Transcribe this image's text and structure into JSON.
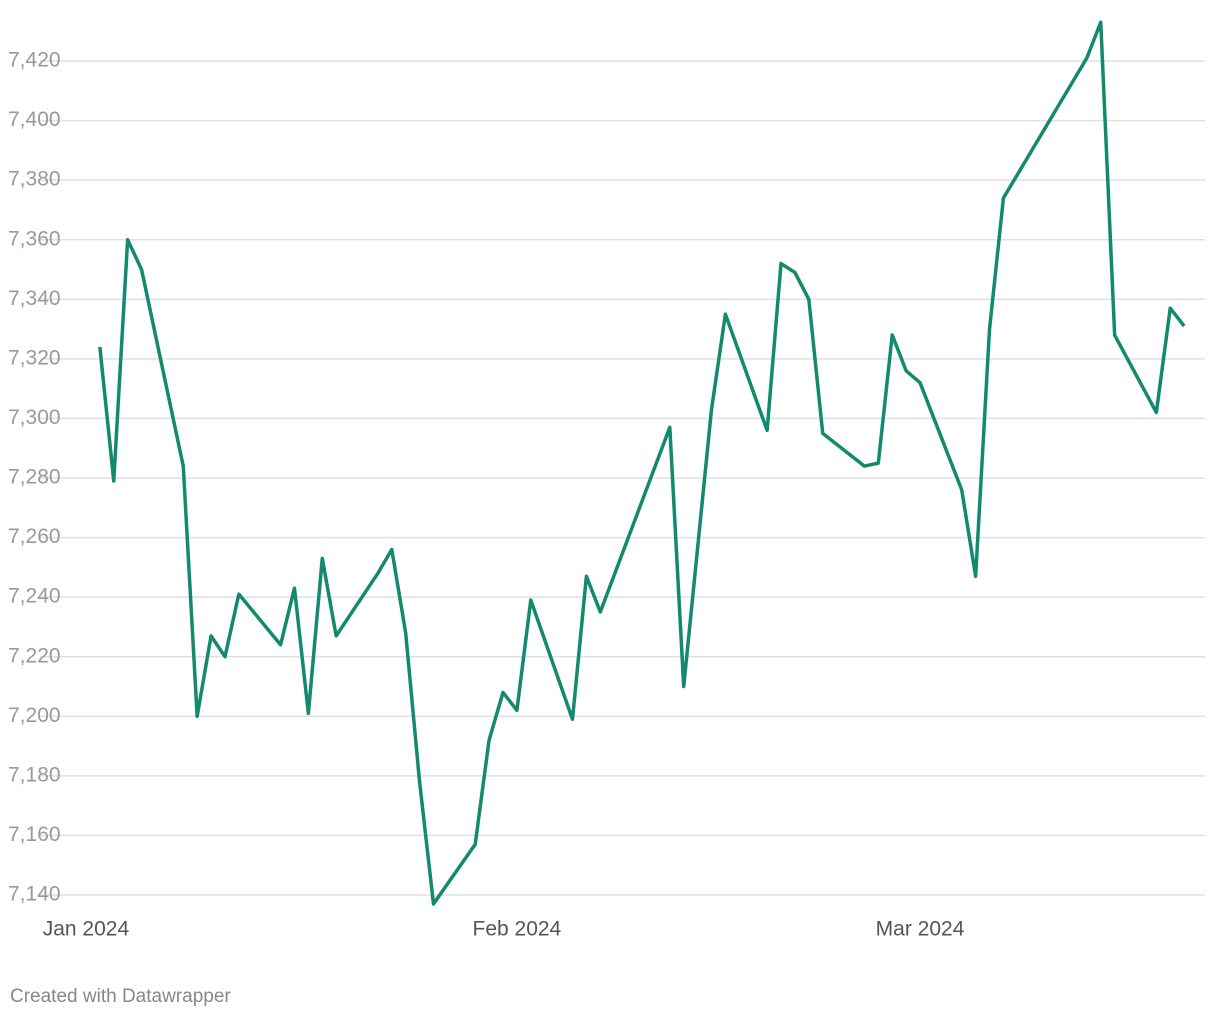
{
  "chart_data": {
    "type": "line",
    "x": [
      1,
      2,
      3,
      4,
      7,
      8,
      9,
      10,
      11,
      14,
      15,
      16,
      17,
      18,
      21,
      22,
      23,
      24,
      25,
      28,
      29,
      30,
      31,
      32,
      35,
      36,
      37,
      42,
      43,
      45,
      46,
      49,
      50,
      51,
      52,
      53,
      56,
      57,
      58,
      59,
      60,
      63,
      64,
      65,
      66,
      72,
      73,
      74,
      77,
      78,
      79
    ],
    "series": [
      {
        "color": "#138a6e",
        "values": [
          7324,
          7279,
          7360,
          7350,
          7284,
          7200,
          7227,
          7220,
          7241,
          7224,
          7243,
          7201,
          7253,
          7227,
          7248,
          7256,
          7228,
          7178,
          7137,
          7157,
          7192,
          7208,
          7202,
          7239,
          7199,
          7247,
          7235,
          7297,
          7210,
          7303,
          7335,
          7296,
          7352,
          7349,
          7340,
          7295,
          7284,
          7285,
          7328,
          7316,
          7312,
          7276,
          7247,
          7330,
          7374,
          7421,
          7433,
          7328,
          7302,
          7337,
          7331
        ]
      }
    ],
    "xlim": [
      -0.5,
      80.5
    ],
    "xticks": [
      {
        "value": 0,
        "label": "Jan 2024"
      },
      {
        "value": 31,
        "label": "Feb 2024"
      },
      {
        "value": 60,
        "label": "Mar 2024"
      }
    ],
    "ylim": [
      7140,
      7420
    ],
    "yticks": [
      {
        "value": 7140,
        "label": "7,140"
      },
      {
        "value": 7160,
        "label": "7,160"
      },
      {
        "value": 7180,
        "label": "7,180"
      },
      {
        "value": 7200,
        "label": "7,200"
      },
      {
        "value": 7220,
        "label": "7,220"
      },
      {
        "value": 7240,
        "label": "7,240"
      },
      {
        "value": 7260,
        "label": "7,260"
      },
      {
        "value": 7280,
        "label": "7,280"
      },
      {
        "value": 7300,
        "label": "7,300"
      },
      {
        "value": 7320,
        "label": "7,320"
      },
      {
        "value": 7340,
        "label": "7,340"
      },
      {
        "value": 7360,
        "label": "7,360"
      },
      {
        "value": 7380,
        "label": "7,380"
      },
      {
        "value": 7400,
        "label": "7,400"
      },
      {
        "value": 7420,
        "label": "7,420"
      }
    ],
    "grid": true,
    "footer": "Created with Datawrapper"
  }
}
